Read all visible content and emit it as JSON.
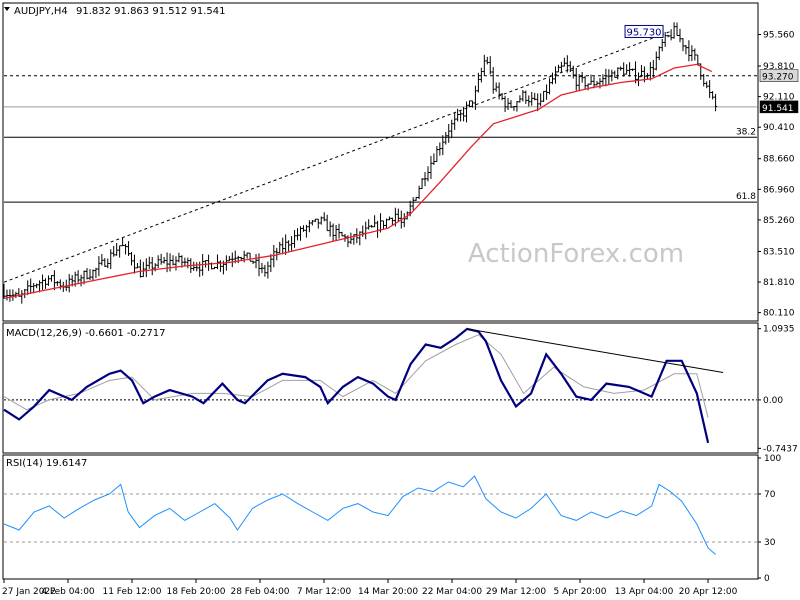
{
  "colors": {
    "background": "#ffffff",
    "price_bars": "#000000",
    "ma_line": "#e8202a",
    "macd_line": "#000080",
    "macd_signal": "#a0a0a0",
    "rsi_line": "#1e90ff",
    "watermark": "#c8c8c8",
    "panel_border": "#000000"
  },
  "watermark": "ActionForex.com",
  "chart_data": [
    {
      "type": "line",
      "name": "price-panel",
      "title": "AUDJPY,H4",
      "ohlc_text": "91.832 91.863 91.512 91.541",
      "ylim": [
        79.7,
        97.2
      ],
      "y_ticks": [
        "95.560",
        "93.810",
        "92.110",
        "90.410",
        "88.660",
        "86.960",
        "85.260",
        "83.510",
        "81.810",
        "80.110"
      ],
      "price_bars": {
        "x_start": 0,
        "x_end": 1,
        "close_path": [
          [
            0.0,
            81.3
          ],
          [
            0.02,
            80.9
          ],
          [
            0.04,
            81.7
          ],
          [
            0.06,
            82.0
          ],
          [
            0.08,
            81.6
          ],
          [
            0.1,
            82.1
          ],
          [
            0.12,
            82.4
          ],
          [
            0.14,
            83.2
          ],
          [
            0.155,
            83.9
          ],
          [
            0.17,
            83.1
          ],
          [
            0.18,
            82.3
          ],
          [
            0.2,
            82.8
          ],
          [
            0.23,
            83.0
          ],
          [
            0.26,
            82.7
          ],
          [
            0.29,
            82.9
          ],
          [
            0.31,
            83.4
          ],
          [
            0.33,
            83.0
          ],
          [
            0.345,
            82.3
          ],
          [
            0.36,
            83.4
          ],
          [
            0.38,
            84.1
          ],
          [
            0.4,
            84.8
          ],
          [
            0.42,
            85.2
          ],
          [
            0.44,
            84.5
          ],
          [
            0.46,
            84.1
          ],
          [
            0.48,
            84.6
          ],
          [
            0.5,
            85.0
          ],
          [
            0.52,
            85.6
          ],
          [
            0.53,
            84.9
          ],
          [
            0.545,
            86.5
          ],
          [
            0.56,
            87.9
          ],
          [
            0.575,
            89.1
          ],
          [
            0.59,
            90.3
          ],
          [
            0.61,
            91.2
          ],
          [
            0.625,
            92.1
          ],
          [
            0.64,
            94.4
          ],
          [
            0.65,
            92.6
          ],
          [
            0.67,
            91.5
          ],
          [
            0.69,
            92.2
          ],
          [
            0.71,
            91.6
          ],
          [
            0.73,
            93.2
          ],
          [
            0.745,
            93.9
          ],
          [
            0.76,
            93.0
          ],
          [
            0.78,
            92.8
          ],
          [
            0.8,
            93.2
          ],
          [
            0.82,
            93.6
          ],
          [
            0.84,
            93.3
          ],
          [
            0.86,
            93.6
          ],
          [
            0.875,
            95.1
          ],
          [
            0.89,
            95.73
          ],
          [
            0.905,
            94.9
          ],
          [
            0.92,
            94.1
          ],
          [
            0.935,
            92.4
          ],
          [
            0.945,
            91.541
          ]
        ],
        "ma_path": [
          [
            0.0,
            80.9
          ],
          [
            0.06,
            81.4
          ],
          [
            0.12,
            81.9
          ],
          [
            0.18,
            82.4
          ],
          [
            0.24,
            82.7
          ],
          [
            0.3,
            82.9
          ],
          [
            0.36,
            83.3
          ],
          [
            0.42,
            83.9
          ],
          [
            0.48,
            84.5
          ],
          [
            0.51,
            84.8
          ],
          [
            0.54,
            85.6
          ],
          [
            0.58,
            87.4
          ],
          [
            0.62,
            89.3
          ],
          [
            0.65,
            90.6
          ],
          [
            0.68,
            91.0
          ],
          [
            0.71,
            91.4
          ],
          [
            0.74,
            92.2
          ],
          [
            0.78,
            92.6
          ],
          [
            0.82,
            92.9
          ],
          [
            0.86,
            93.1
          ],
          [
            0.89,
            93.7
          ],
          [
            0.92,
            93.9
          ],
          [
            0.94,
            93.5
          ]
        ]
      },
      "trendline": {
        "from": [
          0.0,
          81.8
        ],
        "to": [
          0.885,
          95.73
        ]
      },
      "horizontal_levels": [
        {
          "value": 93.27,
          "style": "dashed",
          "label": "93.270",
          "label_style": "grey-box"
        },
        {
          "value": 91.541,
          "style": "solid-light",
          "label": "91.541",
          "label_style": "black-box"
        },
        {
          "value": 89.85,
          "style": "solid",
          "label": "38.2"
        },
        {
          "value": 86.25,
          "style": "solid",
          "label": "61.8"
        }
      ],
      "peak_label": {
        "text": "95.730",
        "x": 0.85,
        "value": 95.73
      }
    },
    {
      "type": "line",
      "name": "macd-panel",
      "title": "MACD(12,26,9) -0.6601 -0.2717",
      "ylim": [
        -0.8,
        1.15
      ],
      "y_ticks": [
        {
          "label": "1.0935",
          "value": 1.0935
        },
        {
          "label": "0.00",
          "value": 0.0
        },
        {
          "label": "-0.7437",
          "value": -0.7437
        }
      ],
      "zero_line": "dotted",
      "series": [
        {
          "values": [
            [
              0.0,
              -0.15
            ],
            [
              0.02,
              -0.3
            ],
            [
              0.04,
              -0.1
            ],
            [
              0.06,
              0.15
            ],
            [
              0.09,
              0.0
            ],
            [
              0.11,
              0.2
            ],
            [
              0.14,
              0.4
            ],
            [
              0.155,
              0.45
            ],
            [
              0.17,
              0.3
            ],
            [
              0.185,
              -0.05
            ],
            [
              0.2,
              0.05
            ],
            [
              0.22,
              0.15
            ],
            [
              0.25,
              0.05
            ],
            [
              0.265,
              -0.05
            ],
            [
              0.29,
              0.25
            ],
            [
              0.31,
              0.0
            ],
            [
              0.32,
              -0.05
            ],
            [
              0.35,
              0.3
            ],
            [
              0.37,
              0.4
            ],
            [
              0.4,
              0.35
            ],
            [
              0.42,
              0.2
            ],
            [
              0.43,
              -0.05
            ],
            [
              0.45,
              0.2
            ],
            [
              0.47,
              0.35
            ],
            [
              0.49,
              0.25
            ],
            [
              0.51,
              0.05
            ],
            [
              0.52,
              0.0
            ],
            [
              0.54,
              0.55
            ],
            [
              0.56,
              0.85
            ],
            [
              0.58,
              0.8
            ],
            [
              0.6,
              0.95
            ],
            [
              0.615,
              1.09
            ],
            [
              0.63,
              1.05
            ],
            [
              0.64,
              0.9
            ],
            [
              0.66,
              0.3
            ],
            [
              0.68,
              -0.1
            ],
            [
              0.7,
              0.1
            ],
            [
              0.72,
              0.7
            ],
            [
              0.74,
              0.4
            ],
            [
              0.76,
              0.05
            ],
            [
              0.78,
              0.0
            ],
            [
              0.8,
              0.25
            ],
            [
              0.83,
              0.2
            ],
            [
              0.86,
              0.05
            ],
            [
              0.88,
              0.6
            ],
            [
              0.9,
              0.6
            ],
            [
              0.92,
              0.1
            ],
            [
              0.935,
              -0.66
            ]
          ]
        },
        {
          "values": [
            [
              0.0,
              0.05
            ],
            [
              0.03,
              -0.15
            ],
            [
              0.06,
              0.0
            ],
            [
              0.1,
              0.1
            ],
            [
              0.14,
              0.3
            ],
            [
              0.17,
              0.35
            ],
            [
              0.2,
              0.0
            ],
            [
              0.25,
              0.1
            ],
            [
              0.29,
              0.1
            ],
            [
              0.33,
              0.05
            ],
            [
              0.37,
              0.3
            ],
            [
              0.42,
              0.3
            ],
            [
              0.45,
              0.05
            ],
            [
              0.49,
              0.3
            ],
            [
              0.52,
              0.1
            ],
            [
              0.56,
              0.6
            ],
            [
              0.6,
              0.85
            ],
            [
              0.63,
              1.0
            ],
            [
              0.66,
              0.7
            ],
            [
              0.69,
              0.1
            ],
            [
              0.73,
              0.5
            ],
            [
              0.77,
              0.2
            ],
            [
              0.81,
              0.1
            ],
            [
              0.85,
              0.15
            ],
            [
              0.89,
              0.4
            ],
            [
              0.92,
              0.4
            ],
            [
              0.935,
              -0.27
            ]
          ]
        }
      ],
      "trendline": {
        "from": [
          0.615,
          1.09
        ],
        "to": [
          0.955,
          0.42
        ]
      }
    },
    {
      "type": "line",
      "name": "rsi-panel",
      "title": "RSI(14) 19.6147",
      "ylim": [
        0,
        100
      ],
      "y_ticks": [
        {
          "label": "100",
          "value": 100
        },
        {
          "label": "70",
          "value": 70
        },
        {
          "label": "30",
          "value": 30
        },
        {
          "label": "0",
          "value": 0
        }
      ],
      "levels": [
        70,
        30
      ],
      "x_tick_labels": [
        "27 Jan 2022",
        "4 Feb 04:00",
        "11 Feb 12:00",
        "18 Feb 20:00",
        "28 Feb 04:00",
        "7 Mar 12:00",
        "14 Mar 20:00",
        "22 Mar 04:00",
        "29 Mar 12:00",
        "5 Apr 20:00",
        "13 Apr 04:00",
        "20 Apr 12:00"
      ],
      "values": [
        [
          0.0,
          45
        ],
        [
          0.02,
          40
        ],
        [
          0.04,
          55
        ],
        [
          0.06,
          60
        ],
        [
          0.08,
          50
        ],
        [
          0.1,
          58
        ],
        [
          0.12,
          65
        ],
        [
          0.14,
          70
        ],
        [
          0.155,
          78
        ],
        [
          0.165,
          55
        ],
        [
          0.18,
          42
        ],
        [
          0.2,
          52
        ],
        [
          0.22,
          58
        ],
        [
          0.24,
          48
        ],
        [
          0.26,
          55
        ],
        [
          0.28,
          62
        ],
        [
          0.3,
          50
        ],
        [
          0.31,
          40
        ],
        [
          0.33,
          58
        ],
        [
          0.35,
          65
        ],
        [
          0.37,
          70
        ],
        [
          0.39,
          62
        ],
        [
          0.41,
          55
        ],
        [
          0.43,
          48
        ],
        [
          0.45,
          58
        ],
        [
          0.47,
          62
        ],
        [
          0.49,
          55
        ],
        [
          0.51,
          52
        ],
        [
          0.53,
          68
        ],
        [
          0.55,
          75
        ],
        [
          0.57,
          72
        ],
        [
          0.59,
          80
        ],
        [
          0.61,
          76
        ],
        [
          0.625,
          85
        ],
        [
          0.64,
          66
        ],
        [
          0.66,
          55
        ],
        [
          0.68,
          50
        ],
        [
          0.7,
          58
        ],
        [
          0.72,
          70
        ],
        [
          0.74,
          52
        ],
        [
          0.76,
          48
        ],
        [
          0.78,
          55
        ],
        [
          0.8,
          50
        ],
        [
          0.82,
          56
        ],
        [
          0.84,
          52
        ],
        [
          0.86,
          60
        ],
        [
          0.87,
          78
        ],
        [
          0.885,
          72
        ],
        [
          0.9,
          64
        ],
        [
          0.92,
          45
        ],
        [
          0.935,
          25
        ],
        [
          0.945,
          19.6
        ]
      ]
    }
  ]
}
